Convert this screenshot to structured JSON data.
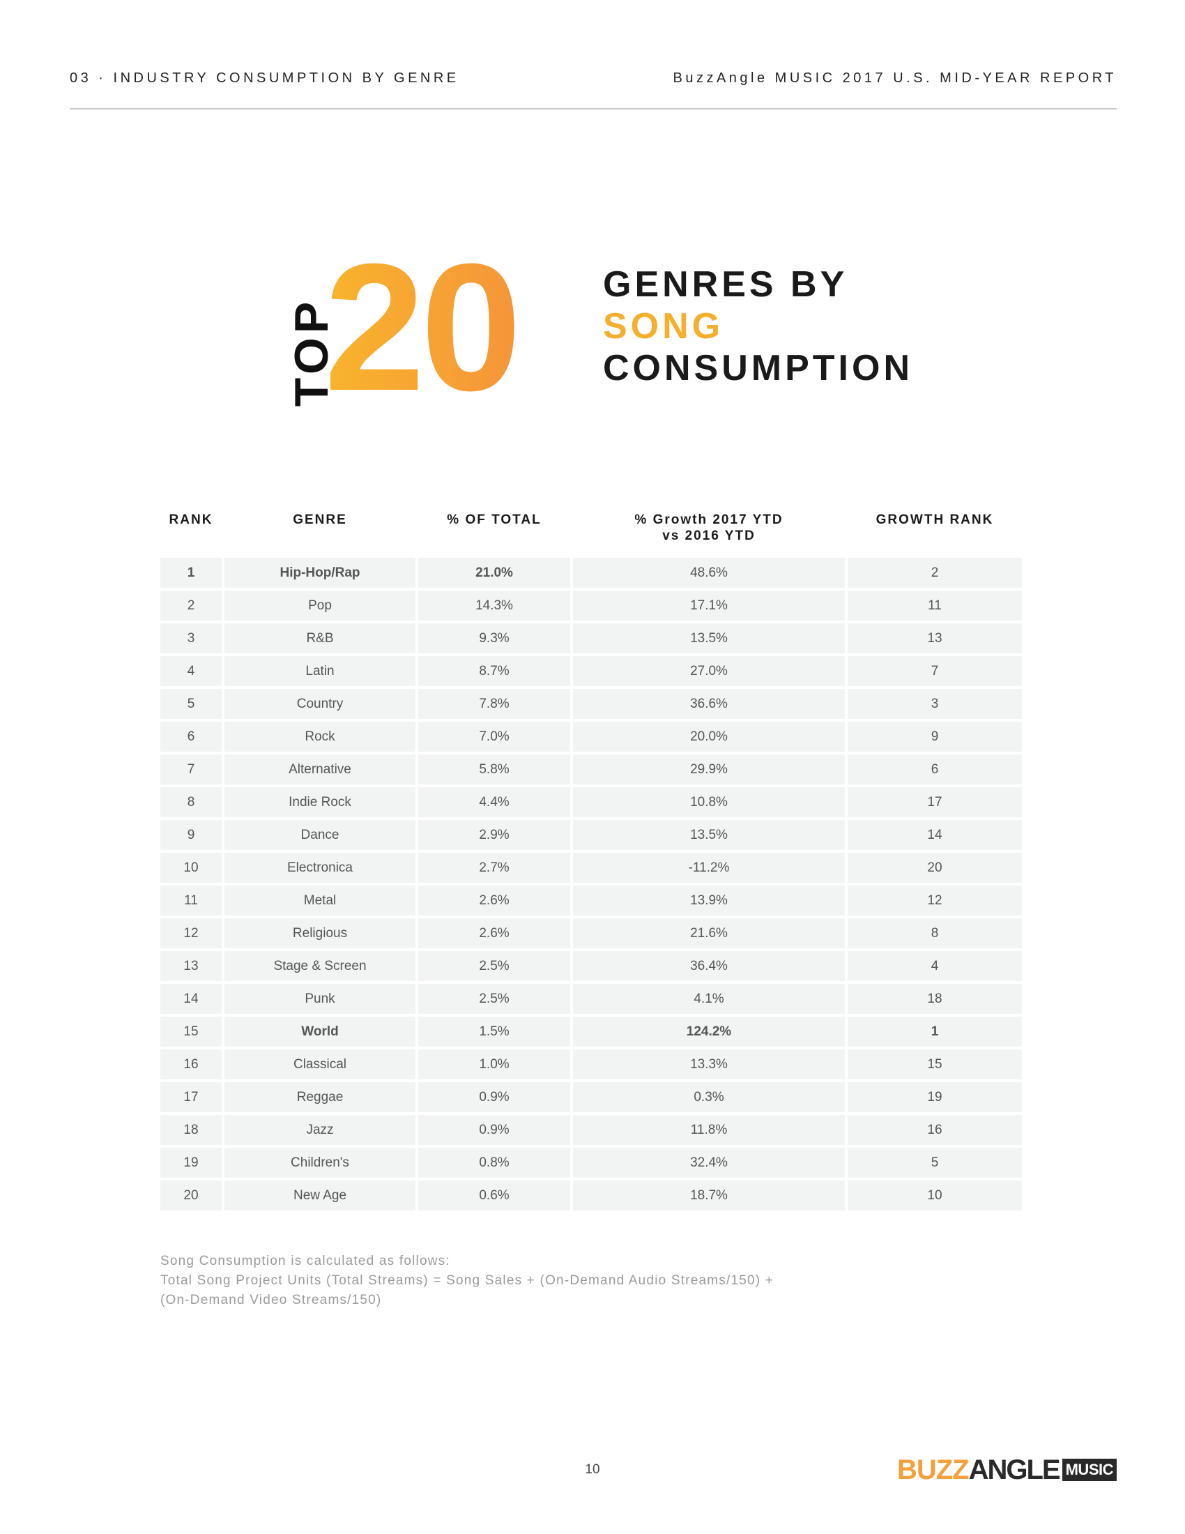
{
  "header": {
    "section": "03 · INDUSTRY CONSUMPTION BY GENRE",
    "report": "BuzzAngle MUSIC 2017 U.S. MID-YEAR REPORT"
  },
  "hero": {
    "top_word": "TOP",
    "number": "20",
    "line1": "GENRES BY",
    "line2": "SONG",
    "line3": "CONSUMPTION"
  },
  "colors": {
    "accent": "#f6ae2d",
    "row_bg": "#f2f3f3"
  },
  "table": {
    "headers": {
      "rank": "RANK",
      "genre": "GENRE",
      "pct_total": "% OF TOTAL",
      "growth_line1": "% Growth 2017 YTD",
      "growth_line2": "vs 2016 YTD",
      "growth_rank": "GROWTH RANK"
    },
    "rows": [
      {
        "rank": "1",
        "genre": "Hip-Hop/Rap",
        "pct": "21.0%",
        "growth": "48.6%",
        "grank": "2"
      },
      {
        "rank": "2",
        "genre": "Pop",
        "pct": "14.3%",
        "growth": "17.1%",
        "grank": "11"
      },
      {
        "rank": "3",
        "genre": "R&B",
        "pct": "9.3%",
        "growth": "13.5%",
        "grank": "13"
      },
      {
        "rank": "4",
        "genre": "Latin",
        "pct": "8.7%",
        "growth": "27.0%",
        "grank": "7"
      },
      {
        "rank": "5",
        "genre": "Country",
        "pct": "7.8%",
        "growth": "36.6%",
        "grank": "3"
      },
      {
        "rank": "6",
        "genre": "Rock",
        "pct": "7.0%",
        "growth": "20.0%",
        "grank": "9"
      },
      {
        "rank": "7",
        "genre": "Alternative",
        "pct": "5.8%",
        "growth": "29.9%",
        "grank": "6"
      },
      {
        "rank": "8",
        "genre": "Indie Rock",
        "pct": "4.4%",
        "growth": "10.8%",
        "grank": "17"
      },
      {
        "rank": "9",
        "genre": "Dance",
        "pct": "2.9%",
        "growth": "13.5%",
        "grank": "14"
      },
      {
        "rank": "10",
        "genre": "Electronica",
        "pct": "2.7%",
        "growth": "-11.2%",
        "grank": "20"
      },
      {
        "rank": "11",
        "genre": "Metal",
        "pct": "2.6%",
        "growth": "13.9%",
        "grank": "12"
      },
      {
        "rank": "12",
        "genre": "Religious",
        "pct": "2.6%",
        "growth": "21.6%",
        "grank": "8"
      },
      {
        "rank": "13",
        "genre": "Stage & Screen",
        "pct": "2.5%",
        "growth": "36.4%",
        "grank": "4"
      },
      {
        "rank": "14",
        "genre": "Punk",
        "pct": "2.5%",
        "growth": "4.1%",
        "grank": "18"
      },
      {
        "rank": "15",
        "genre": "World",
        "pct": "1.5%",
        "growth": "124.2%",
        "grank": "1"
      },
      {
        "rank": "16",
        "genre": "Classical",
        "pct": "1.0%",
        "growth": "13.3%",
        "grank": "15"
      },
      {
        "rank": "17",
        "genre": "Reggae",
        "pct": "0.9%",
        "growth": "0.3%",
        "grank": "19"
      },
      {
        "rank": "18",
        "genre": "Jazz",
        "pct": "0.9%",
        "growth": "11.8%",
        "grank": "16"
      },
      {
        "rank": "19",
        "genre": "Children's",
        "pct": "0.8%",
        "growth": "32.4%",
        "grank": "5"
      },
      {
        "rank": "20",
        "genre": "New Age",
        "pct": "0.6%",
        "growth": "18.7%",
        "grank": "10"
      }
    ]
  },
  "footnote": {
    "line1": "Song Consumption is calculated as follows:",
    "line2": "Total Song Project Units (Total Streams) = Song Sales + (On-Demand Audio Streams/150) +",
    "line3": "(On-Demand Video Streams/150)"
  },
  "page_number": "10",
  "logo": {
    "buzz": "BUZZ",
    "angle": "ANGLE",
    "music": "MUSIC"
  }
}
